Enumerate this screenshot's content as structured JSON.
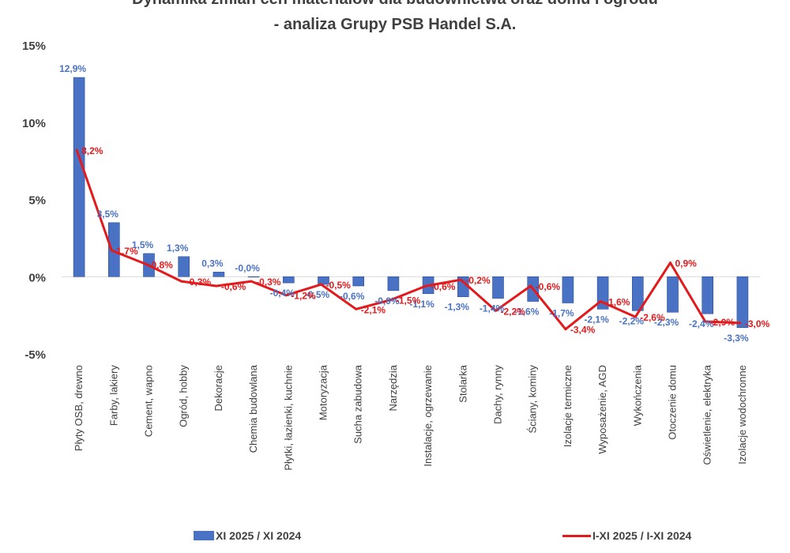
{
  "chart_data": {
    "type": "bar",
    "title": "Dynamika zmian cen materiałów dla budownictwa oraz domu i ogrodu",
    "subtitle": "- analiza Grupy PSB Handel S.A.",
    "categories": [
      "Płyty OSB, drewno",
      "Farby, lakiery",
      "Cement, wapno",
      "Ogród, hobby",
      "Dekoracje",
      "Chemia budowlana",
      "Płytki, łazienki, kuchnie",
      "Motoryzacja",
      "Sucha zabudowa",
      "Narzędzia",
      "Instalacje, ogrzewanie",
      "Stolarka",
      "Dachy, rynny",
      "Ściany, kominy",
      "Izolacje termiczne",
      "Wyposażenie, AGD",
      "Wykończenia",
      "Otoczenie domu",
      "Oświetlenie, elektryka",
      "Izolacje wodochronne"
    ],
    "series": [
      {
        "name": "XI 2025 / XI 2024",
        "type": "bar",
        "color": "#4a72c4",
        "values": [
          12.9,
          3.5,
          1.5,
          1.3,
          0.3,
          -0.0,
          -0.4,
          -0.5,
          -0.6,
          -0.9,
          -1.1,
          -1.3,
          -1.4,
          -1.6,
          -1.7,
          -2.1,
          -2.2,
          -2.3,
          -2.4,
          -3.3
        ],
        "labels": [
          "12,9%",
          "3,5%",
          "1,5%",
          "1,3%",
          "0,3%",
          "-0,0%",
          "-0,4%",
          "-0,5%",
          "-0,6%",
          "-0,9%",
          "-1,1%",
          "-1,3%",
          "-1,4%",
          "-1,6%",
          "-1,7%",
          "-2,1%",
          "-2,2%",
          "-2,3%",
          "-2,4%",
          "-3,3%"
        ]
      },
      {
        "name": "I-XI 2025 / I-XI 2024",
        "type": "line",
        "color": "#e31a1c",
        "values": [
          8.2,
          1.7,
          0.8,
          -0.3,
          -0.6,
          -0.3,
          -1.2,
          -0.5,
          -2.1,
          -1.5,
          -0.6,
          -0.2,
          -2.2,
          -0.6,
          -3.4,
          -1.6,
          -2.6,
          0.9,
          -2.9,
          -3.0
        ],
        "labels": [
          "8,2%",
          "1,7%",
          "0,8%",
          "-0,3%",
          "-0,6%",
          "-0,3%",
          "-1,2%",
          "-0,5%",
          "-2,1%",
          "-1,5%",
          "-0,6%",
          "-0,2%",
          "-2,2%",
          "-0,6%",
          "-3,4%",
          "-1,6%",
          "-2,6%",
          "0,9%",
          "-2,9%",
          "-3,0%"
        ]
      }
    ],
    "ylim": [
      -5,
      15
    ],
    "yticks": [
      -5,
      0,
      5,
      10,
      15
    ],
    "ytick_labels": [
      "-5%",
      "0%",
      "5%",
      "10%",
      "15%"
    ],
    "xlabel": "",
    "ylabel": "",
    "grid": false,
    "legend": "bottom"
  }
}
